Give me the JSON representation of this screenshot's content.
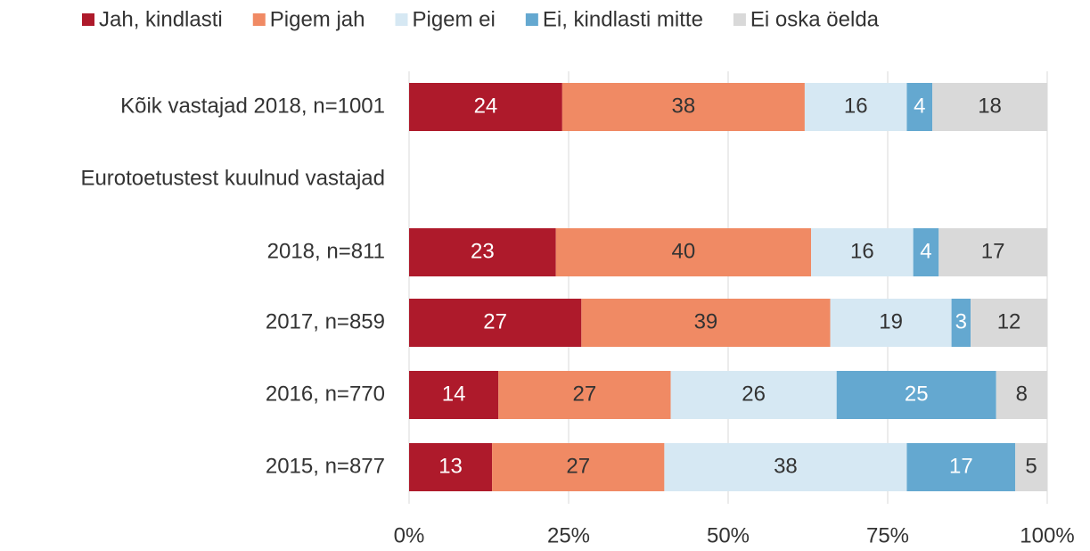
{
  "chart_data": {
    "type": "stacked_bar_horizontal",
    "categories": [
      "Kõik vastajad 2018, n=1001",
      "Eurotoetustest kuulnud vastajad",
      "2018, n=811",
      "2017, n=859",
      "2016, n=770",
      "2015, n=877"
    ],
    "series": [
      {
        "name": "Jah, kindlasti",
        "color": "#ae1a2b",
        "label_color": "#ffffff",
        "values": [
          24,
          null,
          23,
          27,
          14,
          13
        ]
      },
      {
        "name": "Pigem jah",
        "color": "#f08a64",
        "label_color": "#333333",
        "values": [
          38,
          null,
          40,
          39,
          27,
          27
        ]
      },
      {
        "name": "Pigem ei",
        "color": "#d6e8f3",
        "label_color": "#333333",
        "values": [
          16,
          null,
          16,
          19,
          26,
          38
        ]
      },
      {
        "name": "Ei, kindlasti mitte",
        "color": "#64a8d0",
        "label_color": "#ffffff",
        "values": [
          4,
          null,
          4,
          3,
          25,
          17
        ]
      },
      {
        "name": "Ei oska öelda",
        "color": "#d9d9d9",
        "label_color": "#333333",
        "values": [
          18,
          null,
          17,
          12,
          8,
          5
        ]
      }
    ],
    "xlim": [
      0,
      100
    ],
    "xticks": [
      {
        "value": 0,
        "label": "0%"
      },
      {
        "value": 25,
        "label": "25%"
      },
      {
        "value": 50,
        "label": "50%"
      },
      {
        "value": 75,
        "label": "75%"
      },
      {
        "value": 100,
        "label": "100%"
      }
    ],
    "grid": true,
    "legend": "top"
  }
}
